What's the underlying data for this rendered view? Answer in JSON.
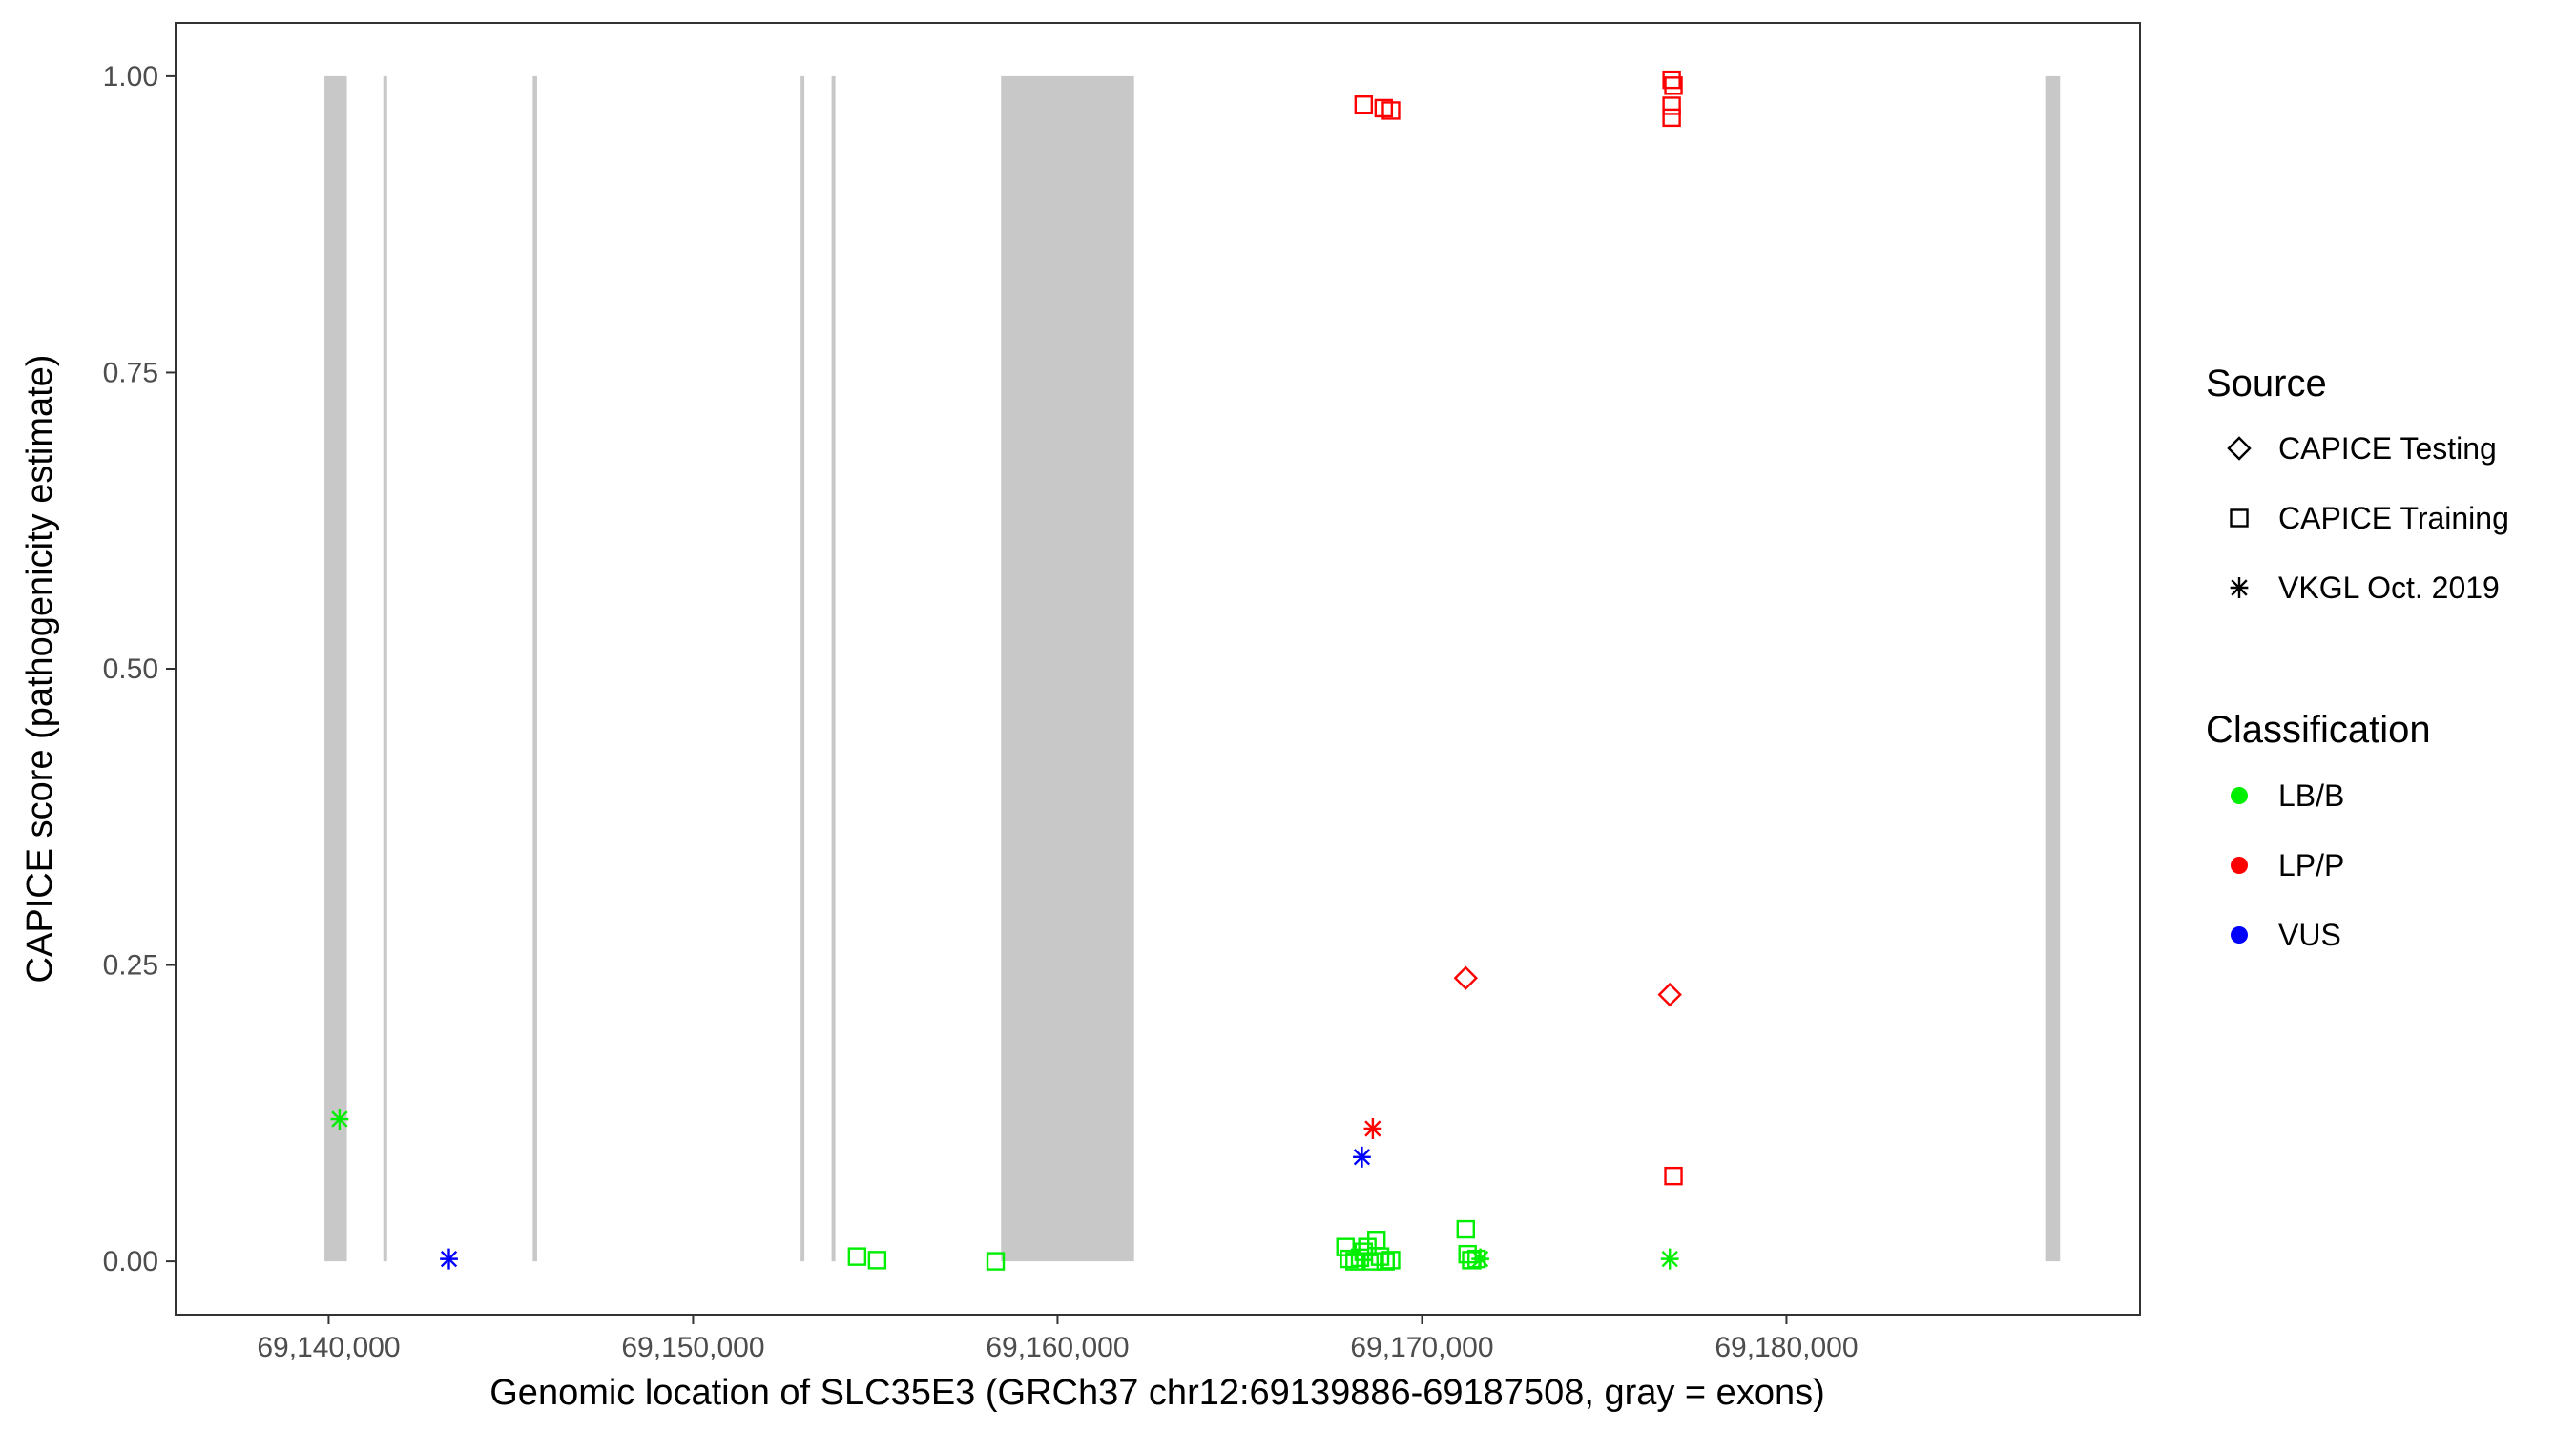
{
  "chart_data": {
    "type": "scatter",
    "xlabel": "Genomic location of SLC35E3 (GRCh37 chr12:69139886-69187508, gray = exons)",
    "ylabel": "CAPICE score (pathogenicity estimate)",
    "xlim": [
      69135800,
      69189700
    ],
    "ylim": [
      -0.045,
      1.045
    ],
    "x_ticks": [
      69140000,
      69150000,
      69160000,
      69170000,
      69180000
    ],
    "x_tick_labels": [
      "69,140,000",
      "69,150,000",
      "69,160,000",
      "69,170,000",
      "69,180,000"
    ],
    "y_ticks": [
      0,
      0.25,
      0.5,
      0.75,
      1.0
    ],
    "y_tick_labels": [
      "0.00",
      "0.25",
      "0.50",
      "0.75",
      "1.00"
    ],
    "grid": false,
    "exon_color": "#c8c8c8",
    "exons": [
      {
        "start": 69139886,
        "end": 69140500
      },
      {
        "start": 69141500,
        "end": 69141580
      },
      {
        "start": 69145600,
        "end": 69145720
      },
      {
        "start": 69152950,
        "end": 69153030
      },
      {
        "start": 69153800,
        "end": 69153900
      },
      {
        "start": 69158450,
        "end": 69162100
      },
      {
        "start": 69187100,
        "end": 69187508
      }
    ],
    "legend": {
      "position": "right",
      "source_title": "Source",
      "source_items": [
        {
          "label": "CAPICE Testing",
          "shape": "diamond"
        },
        {
          "label": "CAPICE Training",
          "shape": "square"
        },
        {
          "label": "VKGL Oct. 2019",
          "shape": "asterisk"
        }
      ],
      "class_title": "Classification",
      "class_items": [
        {
          "label": "LB/B",
          "color": "#00ee00"
        },
        {
          "label": "LP/P",
          "color": "#ff0000"
        },
        {
          "label": "VUS",
          "color": "#0000ff"
        }
      ]
    },
    "series": [
      {
        "source": "CAPICE Testing",
        "classification": "LP/P",
        "points": [
          {
            "x": 69171200,
            "y": 0.239
          },
          {
            "x": 69176800,
            "y": 0.225
          }
        ]
      },
      {
        "source": "CAPICE Training",
        "classification": "LP/P",
        "points": [
          {
            "x": 69168400,
            "y": 0.976
          },
          {
            "x": 69168950,
            "y": 0.973
          },
          {
            "x": 69169150,
            "y": 0.971
          },
          {
            "x": 69176850,
            "y": 0.997
          },
          {
            "x": 69176900,
            "y": 0.992
          },
          {
            "x": 69176850,
            "y": 0.975
          },
          {
            "x": 69176850,
            "y": 0.965
          },
          {
            "x": 69176900,
            "y": 0.072
          }
        ]
      },
      {
        "source": "CAPICE Training",
        "classification": "LB/B",
        "points": [
          {
            "x": 69154500,
            "y": 0.004
          },
          {
            "x": 69155050,
            "y": 0.001
          },
          {
            "x": 69158300,
            "y": 0.0
          },
          {
            "x": 69167900,
            "y": 0.012
          },
          {
            "x": 69168000,
            "y": 0.002
          },
          {
            "x": 69168150,
            "y": 0.0
          },
          {
            "x": 69168300,
            "y": 0.003
          },
          {
            "x": 69168400,
            "y": 0.008
          },
          {
            "x": 69168500,
            "y": 0.012
          },
          {
            "x": 69168650,
            "y": 0.0
          },
          {
            "x": 69168750,
            "y": 0.018
          },
          {
            "x": 69168850,
            "y": 0.004
          },
          {
            "x": 69169000,
            "y": 0.0
          },
          {
            "x": 69169150,
            "y": 0.001
          },
          {
            "x": 69171200,
            "y": 0.027
          },
          {
            "x": 69171250,
            "y": 0.006
          },
          {
            "x": 69171350,
            "y": 0.001
          },
          {
            "x": 69171500,
            "y": 0.002
          }
        ]
      },
      {
        "source": "VKGL Oct. 2019",
        "classification": "LB/B",
        "points": [
          {
            "x": 69140300,
            "y": 0.12
          },
          {
            "x": 69171600,
            "y": 0.002
          },
          {
            "x": 69176800,
            "y": 0.002
          }
        ]
      },
      {
        "source": "VKGL Oct. 2019",
        "classification": "LP/P",
        "points": [
          {
            "x": 69168650,
            "y": 0.112
          }
        ]
      },
      {
        "source": "VKGL Oct. 2019",
        "classification": "VUS",
        "points": [
          {
            "x": 69143300,
            "y": 0.002
          },
          {
            "x": 69168350,
            "y": 0.088
          }
        ]
      }
    ]
  }
}
